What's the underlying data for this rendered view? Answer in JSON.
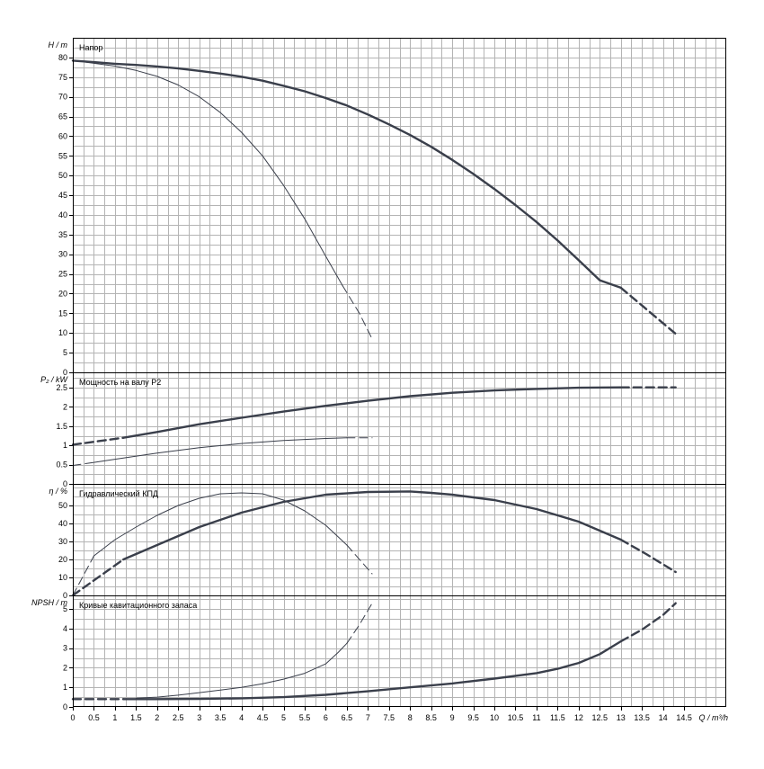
{
  "chart_data": {
    "type": "line",
    "x_axis": {
      "label": "Q / m³/h",
      "range": [
        0,
        15.5
      ],
      "ticks": [
        "0",
        "0.5",
        "1",
        "1.5",
        "2",
        "2.5",
        "3",
        "3.5",
        "4",
        "4.5",
        "5",
        "5.5",
        "6",
        "6.5",
        "7",
        "7.5",
        "8",
        "8.5",
        "9",
        "9.5",
        "10",
        "10.5",
        "11",
        "11.5",
        "12",
        "12.5",
        "13",
        "13.5",
        "14",
        "14.5"
      ]
    },
    "panels": [
      {
        "id": "head",
        "title": "Напор",
        "y_label": "H / m",
        "ylim": [
          0,
          85
        ],
        "y_ticks": [
          "0",
          "5",
          "10",
          "15",
          "20",
          "25",
          "30",
          "35",
          "40",
          "45",
          "50",
          "55",
          "60",
          "65",
          "70",
          "75",
          "80"
        ],
        "y_tick_values": [
          0,
          5,
          10,
          15,
          20,
          25,
          30,
          35,
          40,
          45,
          50,
          55,
          60,
          65,
          70,
          75,
          80
        ],
        "series": [
          {
            "weight": "thick",
            "solid": [
              [
                0,
                79.2
              ],
              [
                0.5,
                78.8
              ],
              [
                1,
                78.4
              ],
              [
                1.5,
                78.1
              ],
              [
                2,
                77.7
              ],
              [
                2.5,
                77.2
              ],
              [
                3,
                76.6
              ],
              [
                3.5,
                75.9
              ],
              [
                4,
                75.1
              ],
              [
                4.5,
                74.1
              ],
              [
                5,
                72.8
              ],
              [
                5.5,
                71.4
              ],
              [
                6,
                69.7
              ],
              [
                6.5,
                67.8
              ],
              [
                7,
                65.5
              ],
              [
                7.5,
                63
              ],
              [
                8,
                60.3
              ],
              [
                8.5,
                57.3
              ],
              [
                9,
                54
              ],
              [
                9.5,
                50.4
              ],
              [
                10,
                46.6
              ],
              [
                10.5,
                42.5
              ],
              [
                11,
                38.2
              ],
              [
                11.5,
                33.5
              ],
              [
                12,
                28.5
              ],
              [
                12.5,
                23.4
              ],
              [
                13,
                21.5
              ]
            ],
            "dashed": [
              [
                13,
                21.5
              ],
              [
                13.5,
                17
              ],
              [
                14,
                12.5
              ],
              [
                14.3,
                9.8
              ]
            ]
          },
          {
            "weight": "thin",
            "solid": [
              [
                0.5,
                78.5
              ],
              [
                1,
                77.8
              ],
              [
                1.5,
                76.7
              ],
              [
                2,
                75.2
              ],
              [
                2.5,
                73
              ],
              [
                3,
                70
              ],
              [
                3.5,
                66
              ],
              [
                4,
                61
              ],
              [
                4.5,
                55
              ],
              [
                5,
                47.5
              ],
              [
                5.5,
                39
              ],
              [
                6,
                29.5
              ],
              [
                6.4,
                22
              ]
            ],
            "dashed": [
              [
                0,
                79.2
              ],
              [
                0.5,
                78.5
              ]
            ],
            "dashed_end": [
              [
                6.4,
                22
              ],
              [
                6.8,
                15
              ],
              [
                7.1,
                8.5
              ]
            ]
          }
        ]
      },
      {
        "id": "power",
        "title": "Мощность на валу P2",
        "y_label": "P₂ / kW",
        "ylim": [
          0,
          2.9
        ],
        "y_ticks": [
          "0",
          "0.5",
          "1",
          "1.5",
          "2",
          "2.5"
        ],
        "y_tick_values": [
          0,
          0.5,
          1,
          1.5,
          2,
          2.5
        ],
        "series": [
          {
            "weight": "thick",
            "solid": [
              [
                1.2,
                1.2
              ],
              [
                2,
                1.35
              ],
              [
                3,
                1.55
              ],
              [
                4,
                1.72
              ],
              [
                5,
                1.88
              ],
              [
                6,
                2.03
              ],
              [
                7,
                2.16
              ],
              [
                8,
                2.28
              ],
              [
                9,
                2.37
              ],
              [
                10,
                2.43
              ],
              [
                11,
                2.47
              ],
              [
                12,
                2.5
              ],
              [
                13,
                2.51
              ]
            ],
            "dashed": [
              [
                0,
                1.02
              ],
              [
                1.2,
                1.2
              ]
            ],
            "dashed_end": [
              [
                13,
                2.51
              ],
              [
                14.3,
                2.51
              ]
            ]
          },
          {
            "weight": "thin",
            "solid": [
              [
                0.5,
                0.56
              ],
              [
                1,
                0.64
              ],
              [
                2,
                0.8
              ],
              [
                3,
                0.94
              ],
              [
                4,
                1.05
              ],
              [
                5,
                1.13
              ],
              [
                6,
                1.18
              ],
              [
                6.5,
                1.2
              ]
            ],
            "dashed": [
              [
                0,
                0.48
              ],
              [
                0.5,
                0.56
              ]
            ],
            "dashed_end": [
              [
                6.5,
                1.2
              ],
              [
                7.1,
                1.2
              ]
            ]
          }
        ]
      },
      {
        "id": "efficiency",
        "title": "Гидравлический КПД",
        "y_label": "η / %",
        "ylim": [
          0,
          62
        ],
        "y_ticks": [
          "0",
          "10",
          "20",
          "30",
          "40",
          "50"
        ],
        "y_tick_values": [
          0,
          10,
          20,
          30,
          40,
          50
        ],
        "series": [
          {
            "weight": "thick",
            "solid": [
              [
                1.2,
                20
              ],
              [
                2,
                28
              ],
              [
                3,
                38
              ],
              [
                4,
                46
              ],
              [
                5,
                52
              ],
              [
                6,
                56
              ],
              [
                7,
                57.5
              ],
              [
                8,
                57.8
              ],
              [
                8.5,
                57
              ],
              [
                9,
                56
              ],
              [
                10,
                53
              ],
              [
                11,
                48
              ],
              [
                12,
                41
              ],
              [
                13,
                31
              ]
            ],
            "dashed": [
              [
                0,
                0
              ],
              [
                1.2,
                20
              ]
            ],
            "dashed_end": [
              [
                13,
                31
              ],
              [
                13.6,
                23
              ],
              [
                14.3,
                13
              ]
            ]
          },
          {
            "weight": "thin",
            "solid": [
              [
                0.5,
                22
              ],
              [
                1,
                31
              ],
              [
                1.5,
                38
              ],
              [
                2,
                44.5
              ],
              [
                2.5,
                50
              ],
              [
                3,
                54
              ],
              [
                3.5,
                56.5
              ],
              [
                4,
                57
              ],
              [
                4.5,
                56.5
              ],
              [
                5,
                53
              ],
              [
                5.5,
                47
              ],
              [
                6,
                39
              ],
              [
                6.5,
                28
              ]
            ],
            "dashed": [
              [
                0,
                0
              ],
              [
                0.5,
                22
              ]
            ],
            "dashed_end": [
              [
                6.5,
                28
              ],
              [
                7.1,
                12
              ]
            ]
          }
        ]
      },
      {
        "id": "npsh",
        "title": "Кривые кавитационного запаса",
        "y_label": "NPSH / m",
        "ylim": [
          0,
          5.7
        ],
        "y_ticks": [
          "0",
          "1",
          "2",
          "3",
          "4",
          "5"
        ],
        "y_tick_values": [
          0,
          1,
          2,
          3,
          4,
          5
        ],
        "series": [
          {
            "weight": "thick",
            "solid": [
              [
                1.2,
                0.4
              ],
              [
                2,
                0.4
              ],
              [
                3,
                0.41
              ],
              [
                4,
                0.44
              ],
              [
                5,
                0.5
              ],
              [
                6,
                0.62
              ],
              [
                7,
                0.8
              ],
              [
                8,
                1
              ],
              [
                9,
                1.2
              ],
              [
                10,
                1.45
              ],
              [
                11,
                1.73
              ],
              [
                11.5,
                1.95
              ],
              [
                12,
                2.25
              ],
              [
                12.5,
                2.7
              ],
              [
                13,
                3.35
              ]
            ],
            "dashed": [
              [
                0,
                0.4
              ],
              [
                1.2,
                0.4
              ]
            ],
            "dashed_end": [
              [
                13,
                3.35
              ],
              [
                13.5,
                3.95
              ],
              [
                14,
                4.7
              ],
              [
                14.3,
                5.3
              ]
            ]
          },
          {
            "weight": "thin",
            "solid": [
              [
                1.5,
                0.45
              ],
              [
                2,
                0.5
              ],
              [
                2.5,
                0.6
              ],
              [
                3,
                0.73
              ],
              [
                3.5,
                0.86
              ],
              [
                4,
                1
              ],
              [
                4.5,
                1.18
              ],
              [
                5,
                1.42
              ],
              [
                5.5,
                1.72
              ],
              [
                6,
                2.2
              ],
              [
                6.3,
                2.8
              ],
              [
                6.5,
                3.25
              ]
            ],
            "dashed": [],
            "dashed_end": [
              [
                6.5,
                3.25
              ],
              [
                6.8,
                4.2
              ],
              [
                7.1,
                5.3
              ]
            ]
          }
        ]
      }
    ],
    "grid": true
  }
}
